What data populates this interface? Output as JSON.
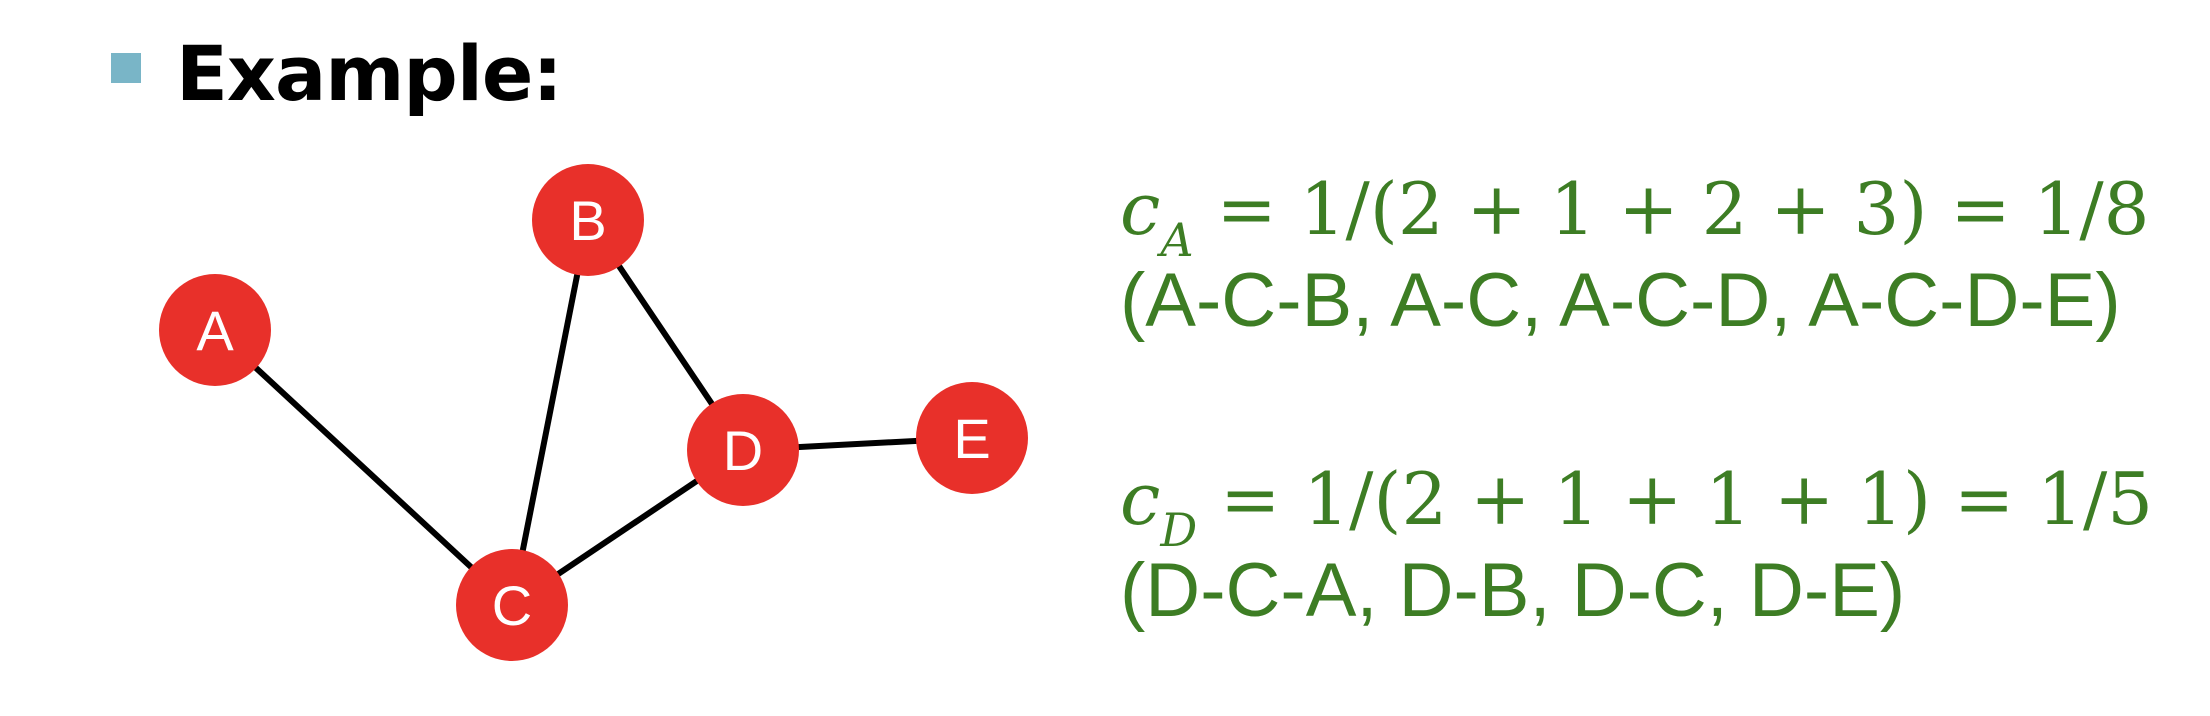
{
  "heading": "Example:",
  "graph": {
    "nodes": [
      {
        "id": "A",
        "label": "A"
      },
      {
        "id": "B",
        "label": "B"
      },
      {
        "id": "C",
        "label": "C"
      },
      {
        "id": "D",
        "label": "D"
      },
      {
        "id": "E",
        "label": "E"
      }
    ],
    "edges": [
      [
        "A",
        "C"
      ],
      [
        "B",
        "C"
      ],
      [
        "B",
        "D"
      ],
      [
        "C",
        "D"
      ],
      [
        "D",
        "E"
      ]
    ]
  },
  "closeness": [
    {
      "var": "c",
      "sub": "A",
      "expr": " = 1/(2 + 1 + 2 + 3) = 1/8",
      "paths": "(A-C-B, A-C, A-C-D, A-C-D-E)"
    },
    {
      "var": "c",
      "sub": "D",
      "expr": " = 1/(2 + 1 + 1 + 1) = 1/5",
      "paths": "(D-C-A, D-B, D-C, D-E)"
    }
  ],
  "colors": {
    "node": "#e8302a",
    "equation": "#3d7d24",
    "bullet": "#79b5c7"
  }
}
